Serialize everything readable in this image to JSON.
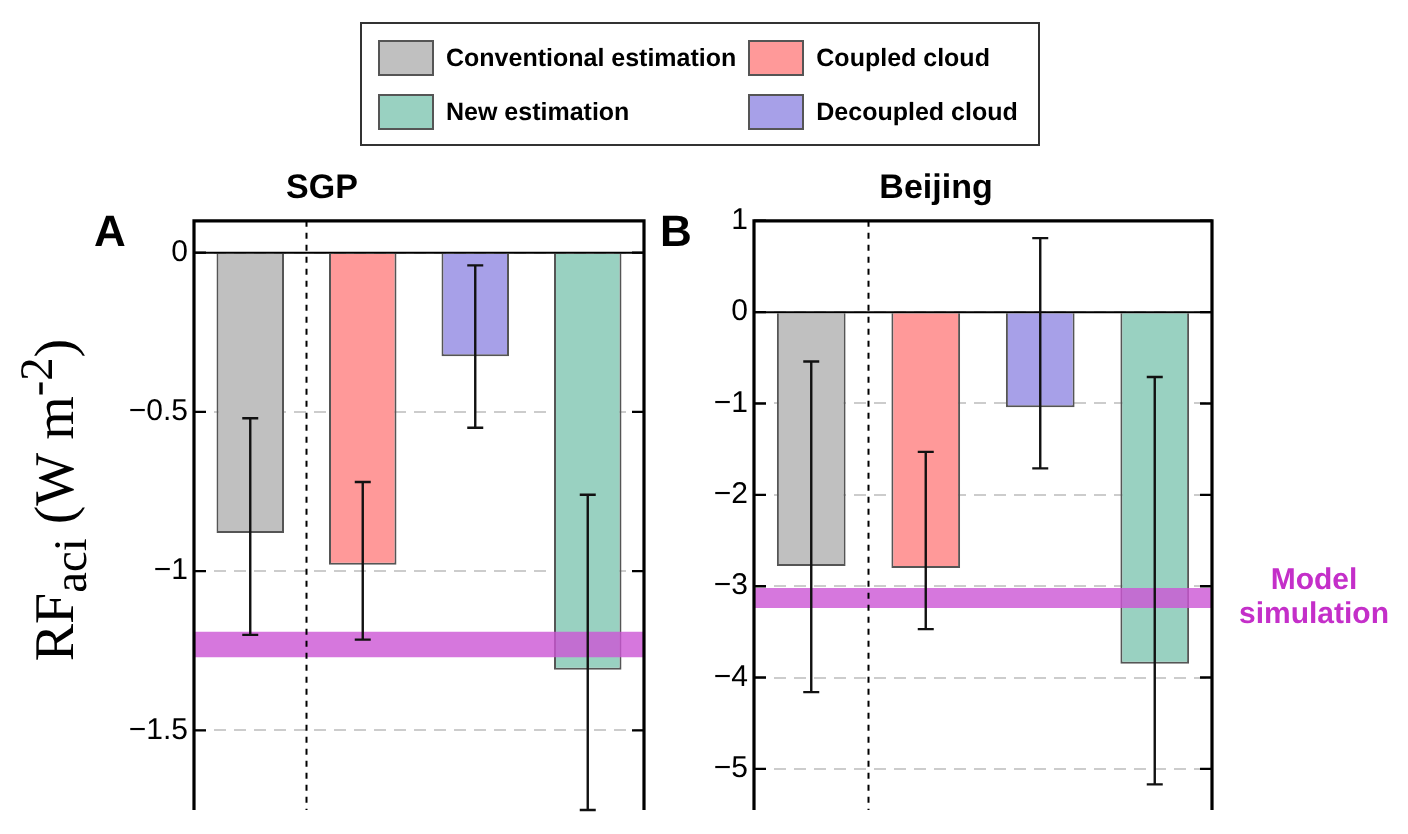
{
  "chart_data": [
    {
      "type": "bar",
      "title": "SGP",
      "ylabel": "RF$_{aci}$ (W m$^{-2}$)",
      "categories": [
        null,
        null,
        null,
        null
      ],
      "series": [
        {
          "name": "Conventional estimation",
          "color": "#c0c0c0",
          "values": [
            -0.88,
            null,
            null,
            null
          ],
          "errors": [
            [
              -1.2,
              -0.52
            ],
            null,
            null,
            null
          ]
        },
        {
          "name": "New estimation",
          "color": "#99d1c1",
          "values": [
            null,
            null,
            null,
            -1.31
          ],
          "errors": [
            null,
            null,
            null,
            [
              -1.75,
              -0.76
            ]
          ]
        },
        {
          "name": "Coupled cloud",
          "color": "#ff9999",
          "values": [
            null,
            -0.98,
            null,
            null
          ],
          "errors": [
            null,
            [
              -1.215,
              -0.72
            ],
            null,
            null
          ]
        },
        {
          "name": "Decoupled cloud",
          "color": "#a7a0e8",
          "values": [
            null,
            null,
            -0.325,
            null
          ],
          "errors": [
            null,
            null,
            [
              -0.55,
              -0.04
            ],
            null
          ]
        }
      ],
      "ylim": [
        -1.75,
        0.1
      ],
      "yticks": [
        {
          "value": 0,
          "label": "0"
        },
        {
          "value": -0.5,
          "label": "−0.5"
        },
        {
          "value": -1,
          "label": "−1"
        },
        {
          "value": -1.5,
          "label": "−1.5"
        }
      ],
      "grid": "y",
      "legend": "top",
      "ref_lines": [
        {
          "axis": "y",
          "value": 0,
          "color": "#000000",
          "line_style": "solid"
        }
      ],
      "bands": [
        {
          "axis": "y",
          "from": -1.27,
          "to": -1.19,
          "color": "#cc55d4"
        }
      ],
      "annotations": [
        "A"
      ]
    },
    {
      "type": "bar",
      "title": "Beijing",
      "categories": [
        null,
        null,
        null,
        null
      ],
      "series": [
        {
          "color": "#c0c0c0",
          "values": [
            -2.78,
            null,
            null,
            null
          ],
          "errors": [
            [
              -4.16,
              -0.54
            ],
            null,
            null,
            null
          ]
        },
        {
          "color": "#99d1c1",
          "values": [
            null,
            null,
            null,
            -3.85
          ],
          "errors": [
            null,
            null,
            null,
            [
              -5.17,
              -0.71
            ]
          ]
        },
        {
          "color": "#ff9999",
          "values": [
            null,
            -2.8,
            null,
            null
          ],
          "errors": [
            null,
            [
              -3.47,
              -1.53
            ],
            null,
            null
          ]
        },
        {
          "color": "#a7a0e8",
          "values": [
            null,
            null,
            -1.04,
            null
          ],
          "errors": [
            null,
            null,
            [
              -1.71,
              0.81
            ],
            null
          ]
        }
      ],
      "ylim": [
        -5.45,
        1
      ],
      "yticks": [
        {
          "value": 1,
          "label": "1"
        },
        {
          "value": 0,
          "label": "0"
        },
        {
          "value": -1,
          "label": "−1"
        },
        {
          "value": -2,
          "label": "−2"
        },
        {
          "value": -3,
          "label": "−3"
        },
        {
          "value": -4,
          "label": "−4"
        },
        {
          "value": -5,
          "label": "−5"
        }
      ],
      "grid": "y",
      "ref_lines": [
        {
          "axis": "y",
          "value": 0,
          "color": "#000000",
          "line_style": "solid"
        }
      ],
      "bands": [
        {
          "axis": "y",
          "from": -3.24,
          "to": -3.02,
          "color": "#cc55d4"
        }
      ],
      "annotations": [
        "B",
        "Model simulation"
      ]
    }
  ]
}
